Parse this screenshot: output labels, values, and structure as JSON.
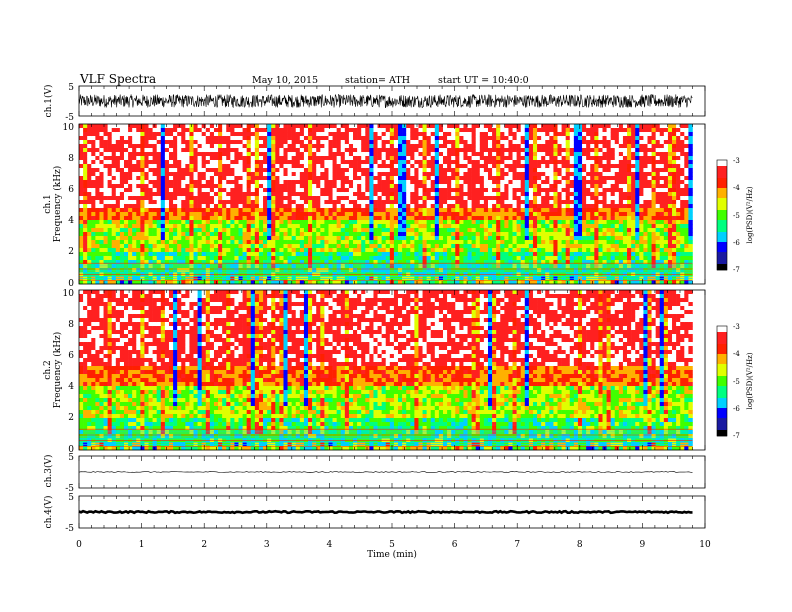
{
  "header": {
    "title": "VLF  Spectra",
    "date": "May 10, 2015",
    "station": "station= ATH",
    "start": "start  UT  =   10:40:0"
  },
  "colors": {
    "colormap": [
      "#000000",
      "#1a1aa0",
      "#0000ff",
      "#00d0ff",
      "#00ff80",
      "#40ff00",
      "#e0ff00",
      "#ffb000",
      "#ff2000",
      "#ff2020",
      "#ffffff"
    ]
  },
  "chart_data": [
    {
      "type": "line",
      "id": "ch1",
      "ylabel": "ch.1(V)",
      "yticks": [
        "5",
        "-5"
      ],
      "ylim": [
        -5,
        5
      ],
      "mean": 0.0,
      "noise_amplitude": 2.2,
      "x_unit": "min",
      "xlim": [
        0,
        10
      ],
      "data_end": 9.8
    },
    {
      "type": "heatmap",
      "id": "ch1-spectrogram",
      "ylabel_channel": "ch.1",
      "ylabel": "Frequency  (kHz)",
      "yticks": [
        "0",
        "2",
        "4",
        "6",
        "8",
        "10"
      ],
      "ylim": [
        0,
        10
      ],
      "xlim": [
        0,
        10
      ],
      "data_end": 9.8,
      "colorbar": {
        "label": "log(PSD)(V²/Hz)",
        "ticks": [
          "-3",
          "-4",
          "-5",
          "-6",
          "-7"
        ],
        "range": [
          -7,
          -3
        ]
      }
    },
    {
      "type": "heatmap",
      "id": "ch2-spectrogram",
      "ylabel_channel": "ch.2",
      "ylabel": "Frequency  (kHz)",
      "yticks": [
        "0",
        "2",
        "4",
        "6",
        "8",
        "10"
      ],
      "ylim": [
        0,
        10
      ],
      "xlim": [
        0,
        10
      ],
      "data_end": 9.8,
      "colorbar": {
        "label": "log(PSD)(V²/Hz)",
        "ticks": [
          "-3",
          "-4",
          "-5",
          "-6",
          "-7"
        ],
        "range": [
          -7,
          -3
        ]
      }
    },
    {
      "type": "line",
      "id": "ch3",
      "ylabel": "ch.3(V)",
      "yticks": [
        "5",
        "-5"
      ],
      "ylim": [
        -5,
        5
      ],
      "mean": 0.0,
      "noise_amplitude": 0.15,
      "xlim": [
        0,
        10
      ],
      "data_end": 9.8
    },
    {
      "type": "line",
      "id": "ch4",
      "ylabel": "ch.4(V)",
      "yticks": [
        "5",
        "-5"
      ],
      "ylim": [
        -5,
        5
      ],
      "mean": 0.0,
      "noise_amplitude": 0.25,
      "xlim": [
        0,
        10
      ],
      "data_end": 9.8,
      "xlabel": "Time  (min)",
      "xticks": [
        "0",
        "1",
        "2",
        "3",
        "4",
        "5",
        "6",
        "7",
        "8",
        "9",
        "10"
      ]
    }
  ]
}
